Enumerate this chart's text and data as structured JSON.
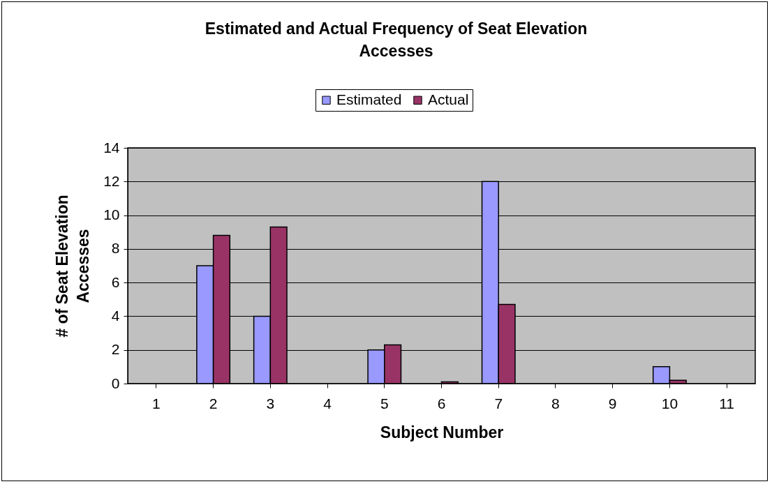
{
  "chart_data": {
    "type": "bar",
    "title": "Estimated and Actual Frequency of Seat Elevation Accesses",
    "xlabel": "Subject Number",
    "ylabel": "# of Seat Elevation Accesses",
    "categories": [
      "1",
      "2",
      "3",
      "4",
      "5",
      "6",
      "7",
      "8",
      "9",
      "10",
      "11"
    ],
    "series": [
      {
        "name": "Estimated",
        "color": "#9999ff",
        "values": [
          null,
          7,
          4,
          null,
          2,
          null,
          12,
          null,
          null,
          1,
          null
        ]
      },
      {
        "name": "Actual",
        "color": "#993366",
        "values": [
          null,
          8.8,
          9.3,
          null,
          2.3,
          0.1,
          4.7,
          null,
          null,
          0.2,
          null
        ]
      }
    ],
    "ylim": [
      0,
      14
    ],
    "yticks": [
      0,
      2,
      4,
      6,
      8,
      10,
      12,
      14
    ],
    "grid": "y",
    "legend": "top"
  }
}
